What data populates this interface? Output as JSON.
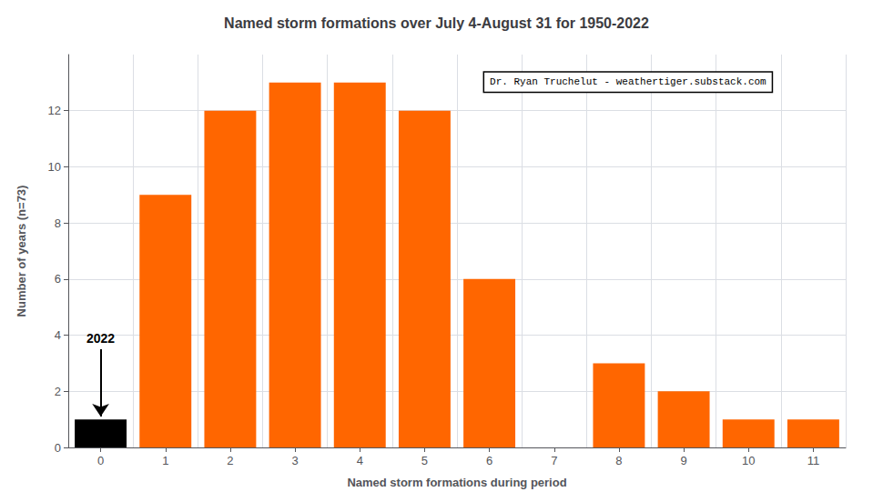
{
  "chart_data": {
    "type": "bar",
    "title": "Named storm formations over July 4-August 31 for 1950-2022",
    "xlabel": "Named storm formations during period",
    "ylabel": "Number of years (n=73)",
    "categories": [
      0,
      1,
      2,
      3,
      4,
      5,
      6,
      7,
      8,
      9,
      10,
      11
    ],
    "values": [
      1,
      9,
      12,
      13,
      13,
      12,
      6,
      0,
      3,
      2,
      1,
      1
    ],
    "colors": [
      "#000000",
      "#FF6600",
      "#FF6600",
      "#FF6600",
      "#FF6600",
      "#FF6600",
      "#FF6600",
      "#FF6600",
      "#FF6600",
      "#FF6600",
      "#FF6600",
      "#FF6600"
    ],
    "ylim": [
      0,
      14
    ],
    "yticks": [
      0,
      2,
      4,
      6,
      8,
      10,
      12
    ],
    "grid": true,
    "annotations": [
      {
        "text": "2022",
        "x": 0,
        "y": 3.5,
        "arrow_y": 1.1
      },
      {
        "text": "Dr. Ryan Truchelut - weathertiger.substack.com"
      }
    ]
  }
}
